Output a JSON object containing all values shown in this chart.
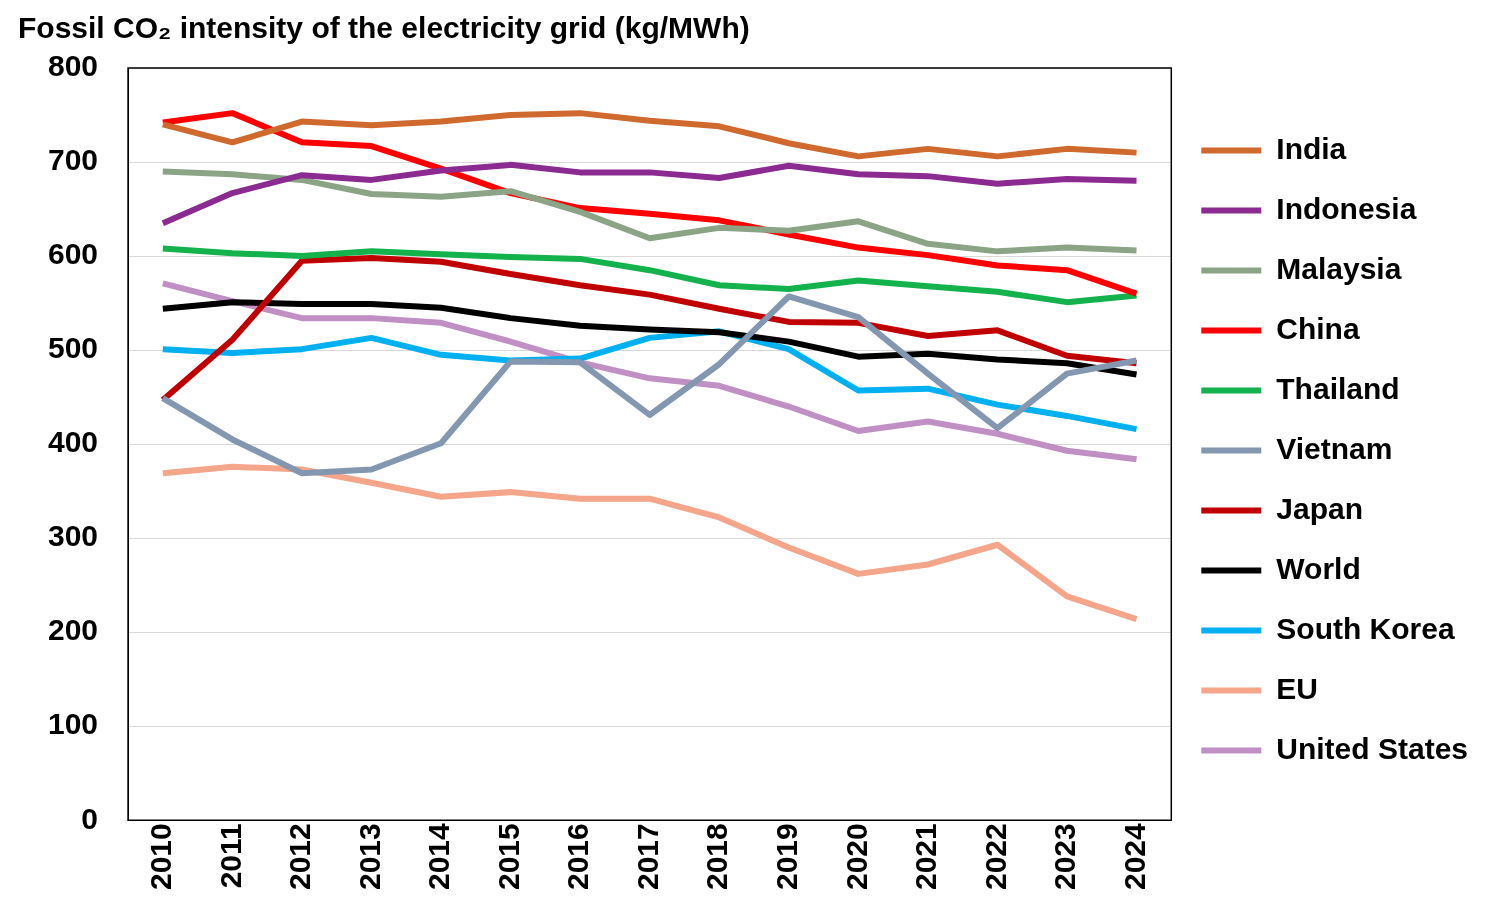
{
  "chart_data": {
    "type": "line",
    "title": "Fossil CO₂ intensity of the electricity grid (kg/MWh)",
    "categories": [
      "2010",
      "2011",
      "2012",
      "2013",
      "2014",
      "2015",
      "2016",
      "2017",
      "2018",
      "2019",
      "2020",
      "2021",
      "2022",
      "2023",
      "2024"
    ],
    "ylim": [
      0,
      800
    ],
    "yticks": [
      0,
      100,
      200,
      300,
      400,
      500,
      600,
      700,
      800
    ],
    "grid": "y",
    "legend": "right",
    "marker": "none",
    "line_style": "solid",
    "series": [
      {
        "name": "India",
        "color": "#d0692e",
        "values": [
          740,
          721,
          743,
          739,
          743,
          750,
          752,
          744,
          738,
          720,
          706,
          714,
          706,
          714,
          710
        ]
      },
      {
        "name": "Indonesia",
        "color": "#8b2a90",
        "values": [
          635,
          667,
          686,
          681,
          691,
          697,
          689,
          689,
          683,
          696,
          687,
          685,
          677,
          682,
          680
        ]
      },
      {
        "name": "Malaysia",
        "color": "#8ca486",
        "values": [
          690,
          687,
          681,
          666,
          663,
          669,
          647,
          619,
          630,
          627,
          637,
          613,
          605,
          609,
          606
        ]
      },
      {
        "name": "China",
        "color": "#ff0000",
        "values": [
          742,
          752,
          721,
          717,
          693,
          667,
          651,
          645,
          638,
          623,
          609,
          601,
          590,
          585,
          560
        ]
      },
      {
        "name": "Thailand",
        "color": "#13b24c",
        "values": [
          608,
          603,
          600,
          605,
          602,
          599,
          597,
          585,
          569,
          565,
          574,
          568,
          562,
          551,
          558
        ]
      },
      {
        "name": "Vietnam",
        "color": "#8497b0",
        "values": [
          449,
          405,
          369,
          373,
          401,
          488,
          487,
          431,
          485,
          557,
          535,
          475,
          417,
          475,
          489
        ]
      },
      {
        "name": "Japan",
        "color": "#c00000",
        "values": [
          447,
          511,
          595,
          598,
          594,
          581,
          569,
          559,
          544,
          530,
          529,
          515,
          521,
          494,
          486
        ]
      },
      {
        "name": "World",
        "color": "#000000",
        "values": [
          544,
          551,
          549,
          549,
          545,
          534,
          526,
          522,
          519,
          509,
          493,
          496,
          490,
          486,
          474
        ]
      },
      {
        "name": "South Korea",
        "color": "#00b0f0",
        "values": [
          501,
          497,
          501,
          513,
          495,
          489,
          491,
          513,
          520,
          501,
          457,
          459,
          442,
          430,
          416
        ]
      },
      {
        "name": "EU",
        "color": "#f4a58a",
        "values": [
          369,
          376,
          373,
          359,
          344,
          349,
          342,
          342,
          322,
          290,
          262,
          272,
          293,
          238,
          214
        ]
      },
      {
        "name": "United States",
        "color": "#c08fc4",
        "values": [
          571,
          552,
          534,
          534,
          529,
          509,
          487,
          470,
          462,
          440,
          414,
          424,
          411,
          393,
          384
        ]
      }
    ]
  }
}
